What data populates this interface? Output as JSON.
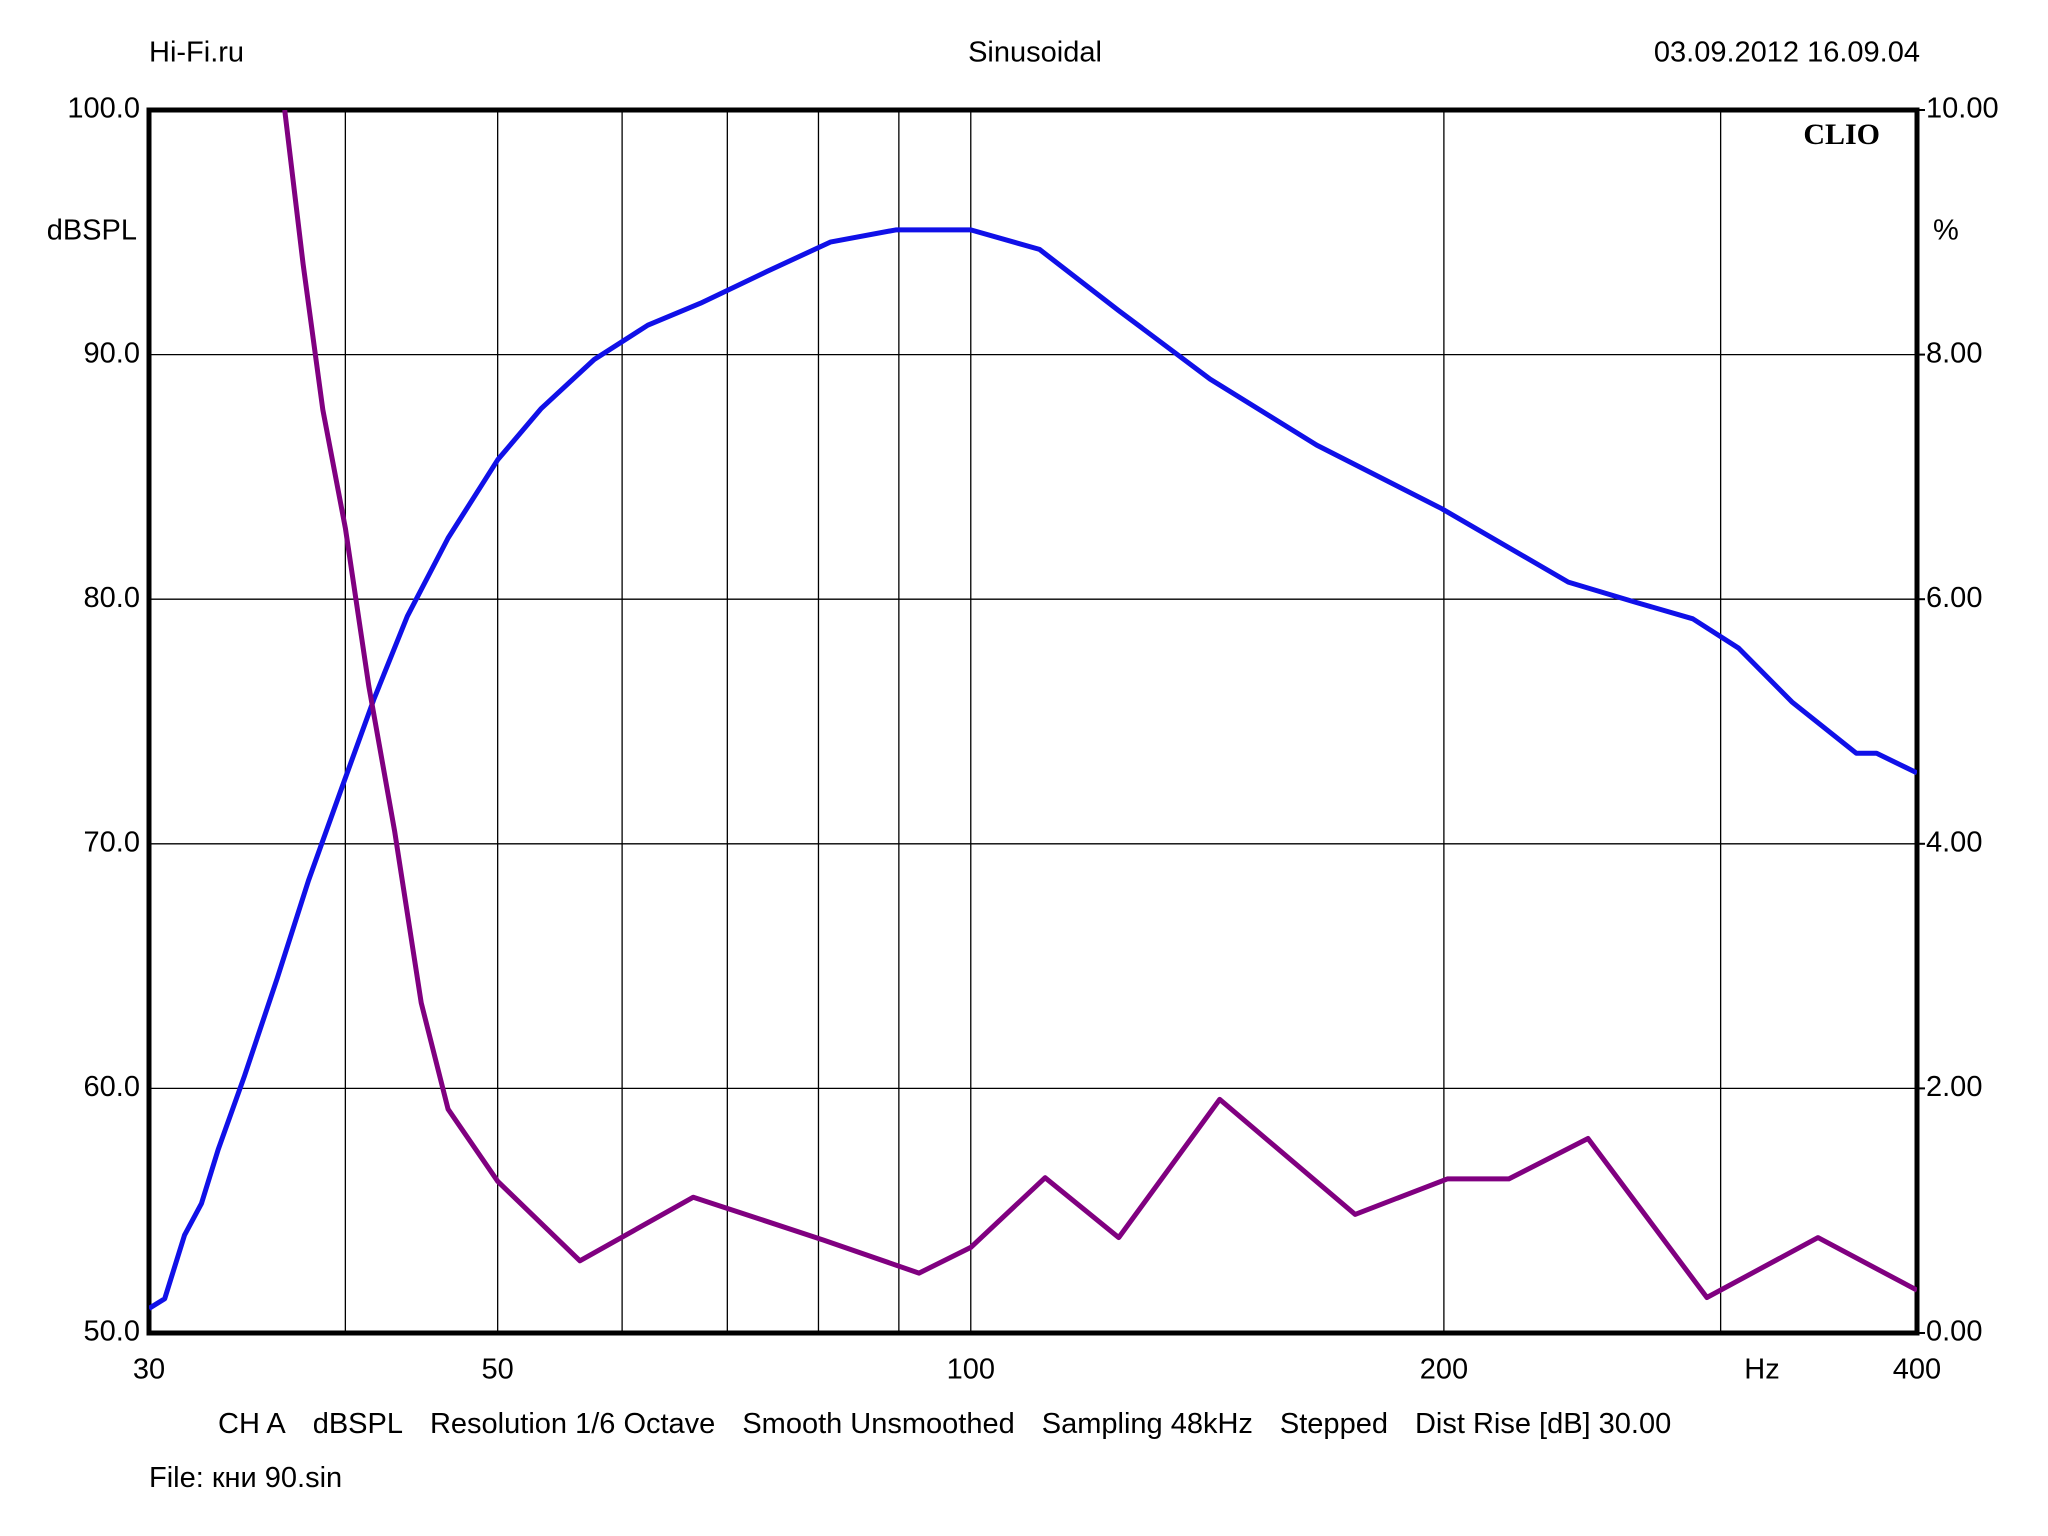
{
  "header": {
    "left": "Hi-Fi.ru",
    "center": "Sinusoidal",
    "right": "03.09.2012 16.09.04"
  },
  "chart_data": {
    "type": "line",
    "brand": "CLIO",
    "y_label": "dBSPL",
    "y2_label": "%",
    "x_label": "Hz",
    "xscale": "log",
    "grid": true,
    "xlim": [
      30,
      400
    ],
    "xticks": [
      30,
      50,
      100,
      200,
      400
    ],
    "xminor": [
      40,
      60,
      70,
      80,
      90,
      300
    ],
    "ylim": [
      50,
      100
    ],
    "yticks": [
      {
        "value": 50,
        "label": "50.0"
      },
      {
        "value": 60,
        "label": "60.0"
      },
      {
        "value": 70,
        "label": "70.0"
      },
      {
        "value": 80,
        "label": "80.0"
      },
      {
        "value": 90,
        "label": "90.0"
      },
      {
        "value": 100,
        "label": "100.0"
      }
    ],
    "y2lim": [
      0,
      10
    ],
    "y2ticks": [
      {
        "value": 0,
        "label": "0.00"
      },
      {
        "value": 2,
        "label": "2.00"
      },
      {
        "value": 4,
        "label": "4.00"
      },
      {
        "value": 6,
        "label": "6.00"
      },
      {
        "value": 8,
        "label": "8.00"
      },
      {
        "value": 10,
        "label": "10.00"
      }
    ],
    "series": [
      {
        "color": "#1010e8",
        "axis": "y",
        "x": [
          30,
          30.7,
          31.6,
          32.4,
          33.2,
          34.5,
          36.2,
          37.9,
          39.8,
          41.7,
          43.8,
          46.5,
          50,
          53.3,
          57.6,
          62.3,
          67.3,
          74.2,
          81.4,
          89.6,
          100,
          110.6,
          124.2,
          142,
          166,
          199.4,
          240,
          264,
          288,
          308,
          333,
          366,
          377,
          400
        ],
        "values": [
          51.0,
          51.4,
          54.0,
          55.3,
          57.5,
          60.5,
          64.5,
          68.5,
          72.3,
          75.9,
          79.3,
          82.5,
          85.7,
          87.8,
          89.8,
          91.2,
          92.1,
          93.4,
          94.6,
          95.1,
          95.1,
          94.3,
          91.8,
          89.0,
          86.3,
          83.7,
          80.7,
          79.9,
          79.2,
          78.0,
          75.8,
          73.7,
          73.7,
          72.9
        ]
      },
      {
        "color": "#800080",
        "axis": "y2",
        "x": [
          36.6,
          37.6,
          38.7,
          40.0,
          41.4,
          43.0,
          44.7,
          46.5,
          50,
          56.4,
          66.6,
          80.6,
          92.7,
          100,
          111.5,
          124.2,
          144,
          175.6,
          201,
          220,
          247,
          294,
          346,
          400
        ],
        "values": [
          10.0,
          8.74,
          7.55,
          6.58,
          5.29,
          4.1,
          2.7,
          1.83,
          1.24,
          0.59,
          1.11,
          0.76,
          0.49,
          0.7,
          1.27,
          0.78,
          1.91,
          0.97,
          1.26,
          1.26,
          1.59,
          0.29,
          0.78,
          0.35
        ]
      }
    ]
  },
  "footer": [
    "CH A",
    "dBSPL",
    "Resolution 1/6 Octave",
    "Smooth Unsmoothed",
    "Sampling 48kHz",
    "Stepped",
    "Dist Rise [dB] 30.00"
  ],
  "file": "File: кни 90.sin"
}
